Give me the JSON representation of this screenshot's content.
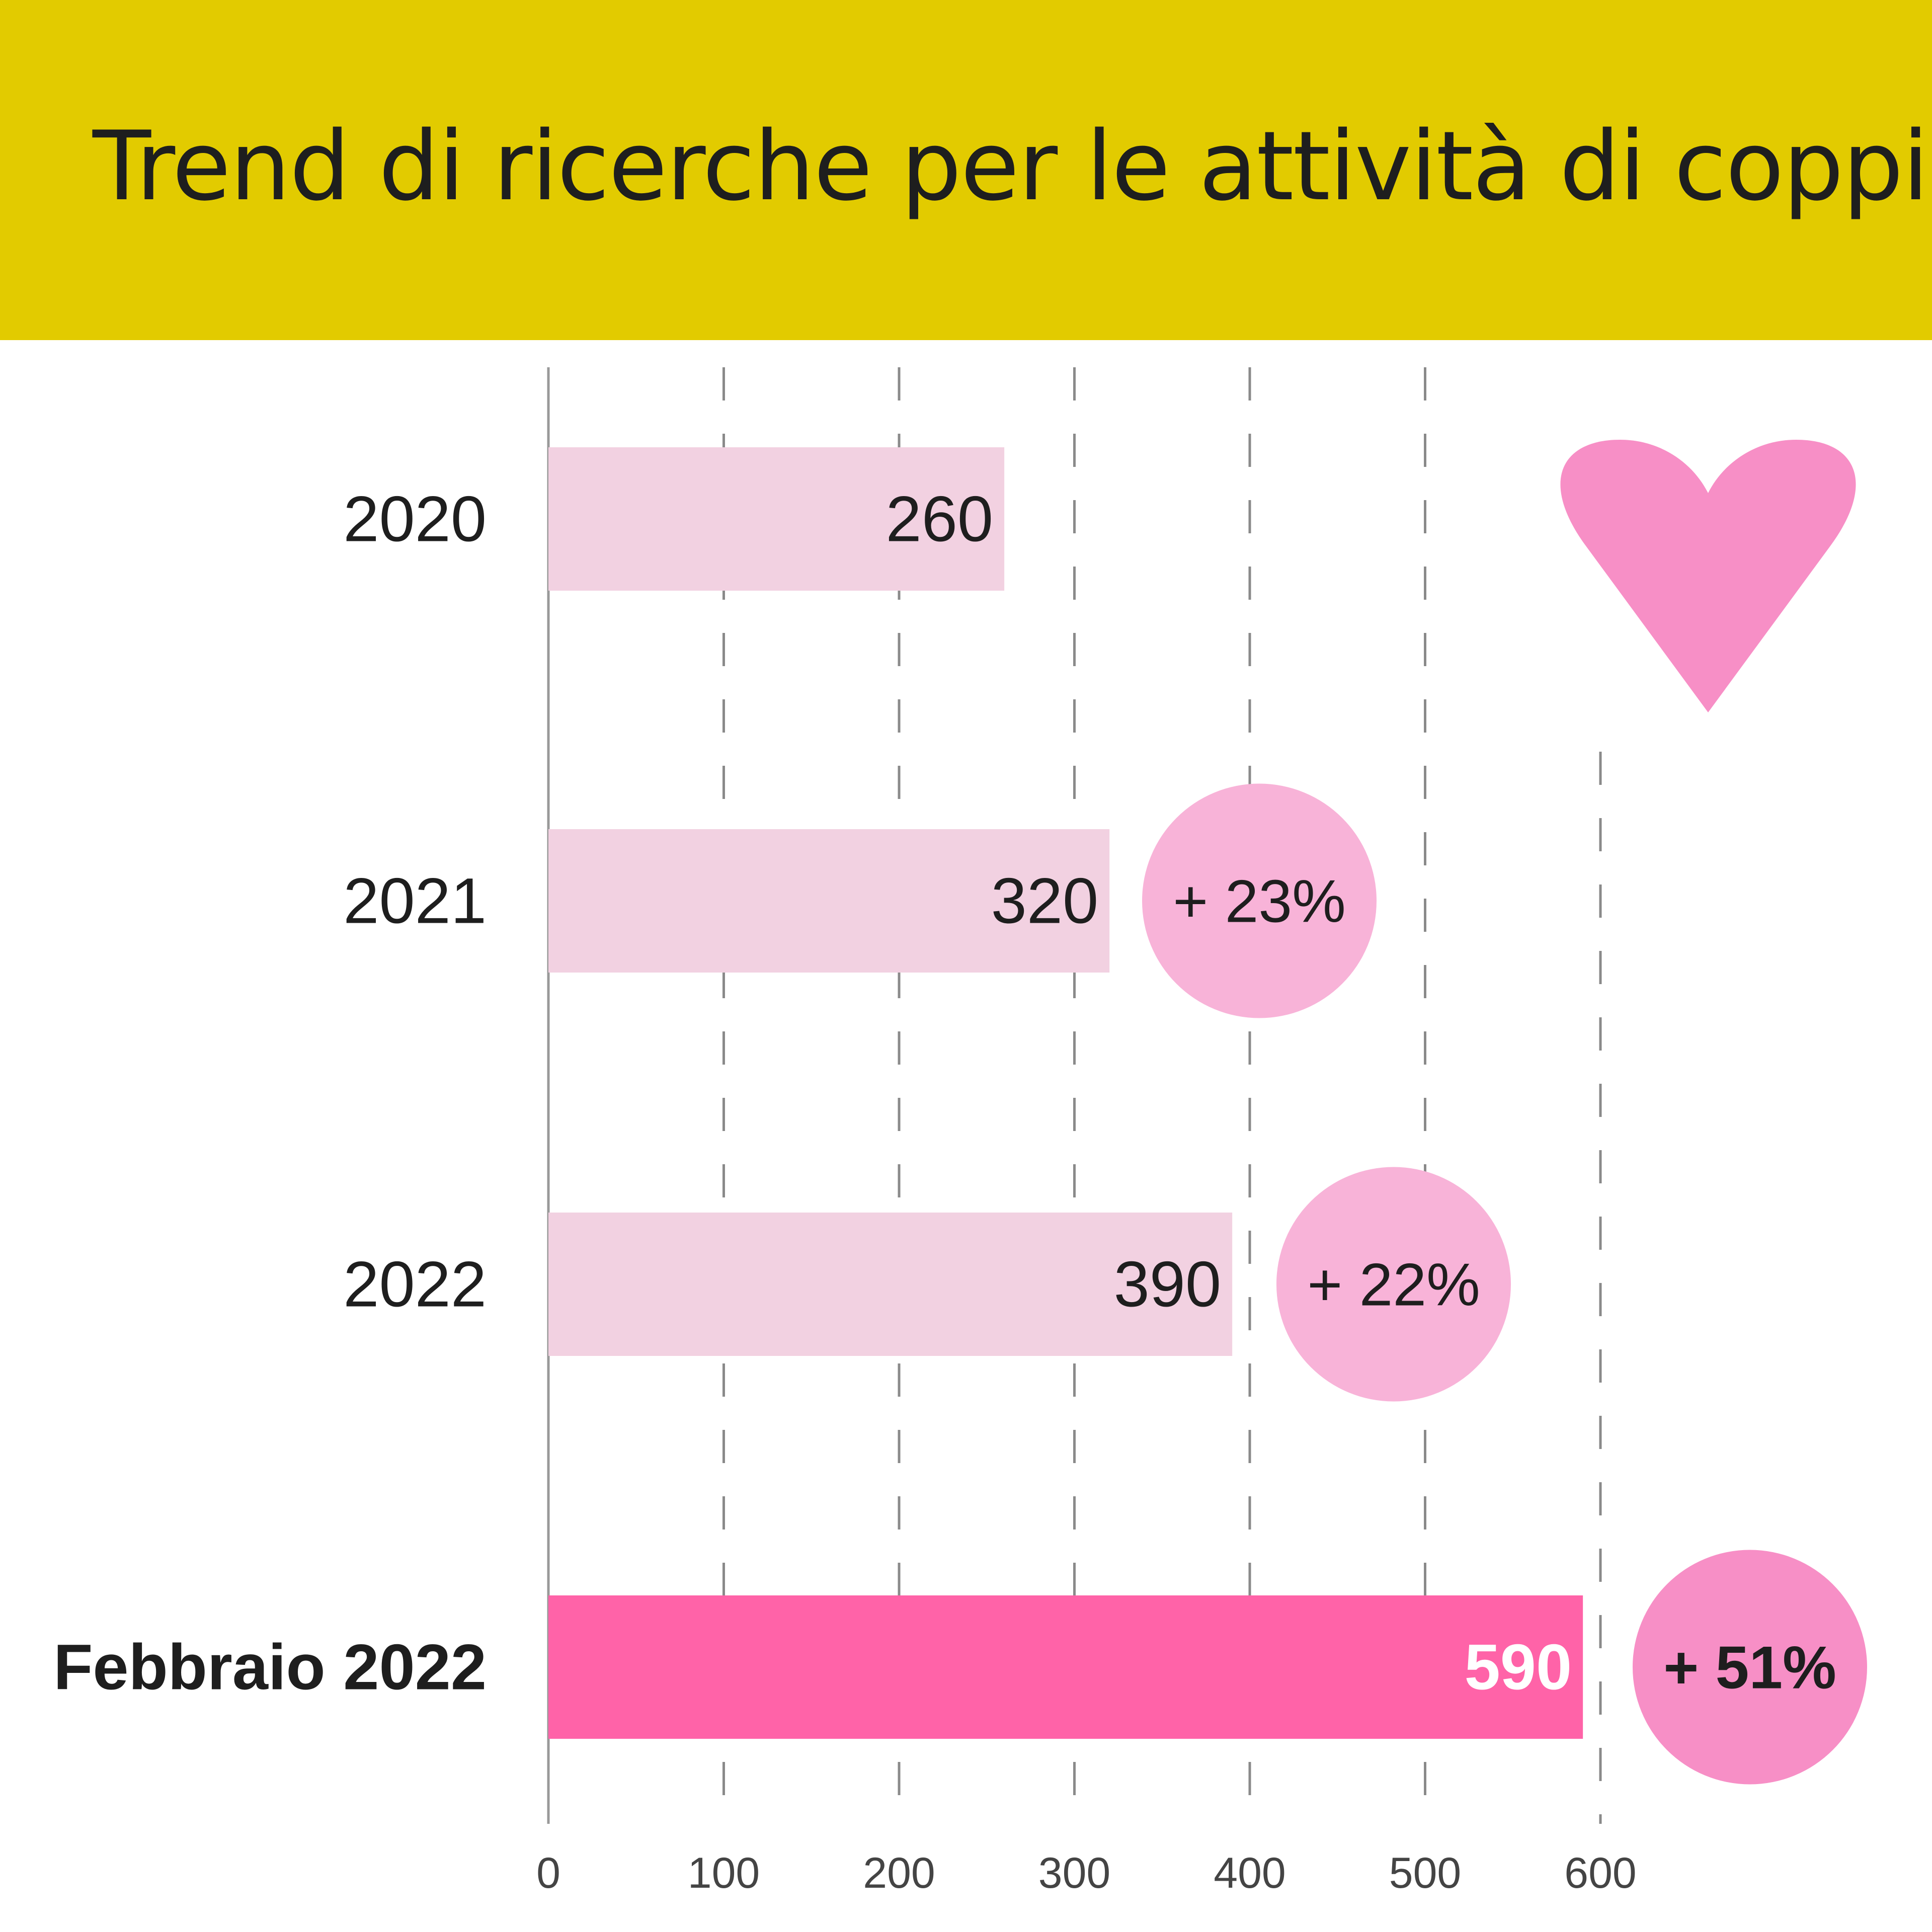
{
  "title": "Trend di ricerche per le attività di coppia",
  "colors": {
    "header": "#e2cb00",
    "bar": "#f2d1e1",
    "bar_highlight": "#ff63a8",
    "bubble": "#f8b3d8",
    "bubble_highlight": "#f78fc6",
    "heart": "#f78fc6",
    "grid": "#8a8a8a"
  },
  "decoration": {
    "icon": "heart-icon"
  },
  "chart_data": {
    "type": "bar",
    "orientation": "horizontal",
    "categories": [
      "2020",
      "2021",
      "2022",
      "Febbraio 2022"
    ],
    "values": [
      260,
      320,
      390,
      590
    ],
    "value_labels": [
      "260",
      "320",
      "390",
      "590"
    ],
    "highlight": "Febbraio 2022",
    "growth_labels": [
      null,
      "+ 23%",
      "+ 22%",
      "+ 51%"
    ],
    "xlim": [
      0,
      600
    ],
    "xticks": [
      "0",
      "100",
      "200",
      "300",
      "400",
      "500",
      "600"
    ],
    "grid": "vertical dashed",
    "title": "Trend di ricerche per le attività di coppia",
    "xlabel": "",
    "ylabel": ""
  }
}
